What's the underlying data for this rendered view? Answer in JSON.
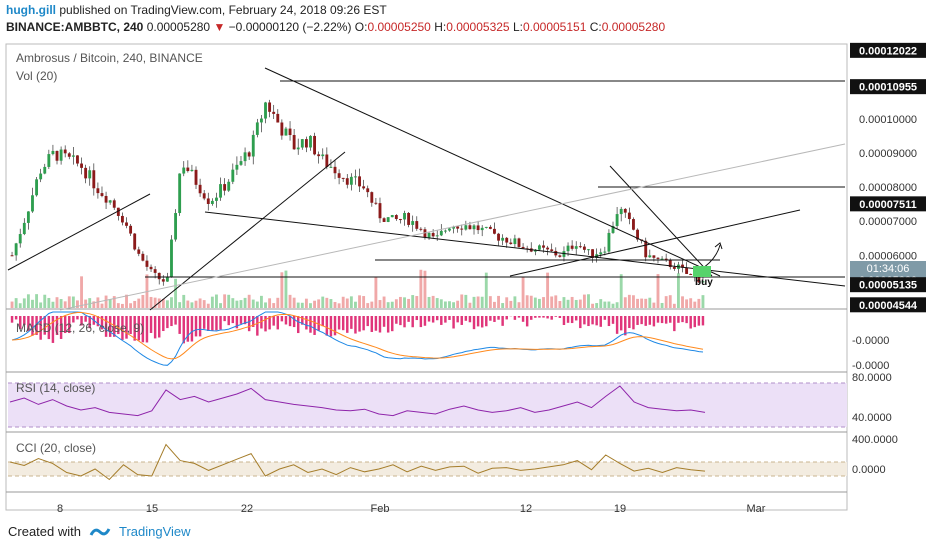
{
  "header": {
    "author": "hugh.gill",
    "published": "published on TradingView.com, February 24, 2018 09:26 EST",
    "symbol": "BINANCE:AMBBTC, 240",
    "last": "0.00005280",
    "change_arrow": "▼",
    "change": "−0.00000120 (−2.22%)",
    "o_label": "O:",
    "o": "0.00005250",
    "h_label": "H:",
    "h": "0.00005325",
    "l_label": "L:",
    "l": "0.00005151",
    "c_label": "C:",
    "c": "0.00005280"
  },
  "panes": {
    "main_title": "Ambrosus / Bitcoin, 240, BINANCE",
    "vol_title": "Vol (20)",
    "macd_title": "MACD (12, 26, close, 9)",
    "rsi_title": "RSI (14, close)",
    "cci_title": "CCI (20, close)",
    "annotation": "buy"
  },
  "colors": {
    "up": "#2e9e4f",
    "down": "#8b1a1a",
    "macd_hist": "#e0357a",
    "macd_line": "#1e88e5",
    "signal_line": "#ff8a1e",
    "rsi_line": "#8e24aa",
    "rsi_band": "#ece0f7",
    "cci_line": "#a57d2a",
    "cci_band": "#f3ece0",
    "brand": "#1e88c8"
  },
  "chart_data": {
    "type": "candlestick",
    "x_ticks": [
      "8",
      "15",
      "22",
      "Feb",
      "12",
      "19",
      "Mar"
    ],
    "y_ticks": [
      "0.00012022",
      "0.00010955",
      "0.00010000",
      "0.00009000",
      "0.00008000",
      "0.00007511",
      "0.00007000",
      "0.00006000",
      "0.00005280",
      "0.00005135",
      "0.00004544"
    ],
    "price_labels": [
      {
        "value": 0.00012022,
        "label": "0.00012022",
        "style": "boxed"
      },
      {
        "value": 0.00010955,
        "label": "0.00010955",
        "style": "boxed"
      },
      {
        "value": 0.0001,
        "label": "0.00010000",
        "style": "plain"
      },
      {
        "value": 9e-05,
        "label": "0.00009000",
        "style": "plain"
      },
      {
        "value": 8e-05,
        "label": "0.00008000",
        "style": "plain"
      },
      {
        "value": 7.511e-05,
        "label": "0.00007511",
        "style": "boxed"
      },
      {
        "value": 7e-05,
        "label": "0.00007000",
        "style": "plain"
      },
      {
        "value": 6e-05,
        "label": "0.00006000",
        "style": "plain"
      },
      {
        "value": 5.28e-05,
        "label": "0.00005280",
        "style": "current"
      },
      {
        "value": 5.135e-05,
        "label": "0.00005135",
        "style": "boxed"
      },
      {
        "value": 4.544e-05,
        "label": "0.00004544",
        "style": "boxed"
      }
    ],
    "countdown": "01:34:06",
    "ylim": [
      4.45e-05,
      0.0001215
    ],
    "horizontal_levels": [
      0.00010955,
      7.511e-05,
      5.135e-05
    ],
    "close_series": [
      6e-05,
      7.2e-05,
      8.5e-05,
      9e-05,
      8.8e-05,
      8.6e-05,
      8e-05,
      7.6e-05,
      7e-05,
      6e-05,
      5.4e-05,
      5.2e-05,
      8.8e-05,
      8.2e-05,
      7.6e-05,
      8e-05,
      8.6e-05,
      9.2e-05,
      0.000105,
      9.8e-05,
      9.2e-05,
      9.4e-05,
      8.8e-05,
      8.5e-05,
      8.2e-05,
      8e-05,
      7.2e-05,
      7e-05,
      7.1e-05,
      6.8e-05,
      6.4e-05,
      6.9e-05,
      6.9e-05,
      6.8e-05,
      6.6e-05,
      6.5e-05,
      6.3e-05,
      6.2e-05,
      6.1e-05,
      6e-05,
      6.4e-05,
      6e-05,
      6.2e-05,
      7.4e-05,
      6.8e-05,
      6e-05,
      5.8e-05,
      5.7e-05,
      5.4e-05,
      5.28e-05
    ],
    "macd_labels": [
      "-0.0000",
      "-0.0000"
    ],
    "rsi_ticks": [
      "80.0000",
      "40.0000"
    ],
    "rsi_ylim": [
      20,
      90
    ],
    "rsi_series": [
      55,
      60,
      52,
      58,
      50,
      45,
      48,
      42,
      40,
      38,
      44,
      70,
      58,
      62,
      55,
      60,
      65,
      72,
      58,
      55,
      52,
      50,
      48,
      45,
      44,
      46,
      40,
      38,
      44,
      42,
      40,
      46,
      50,
      45,
      42,
      44,
      48,
      42,
      45,
      50,
      55,
      48,
      62,
      75,
      55,
      48,
      46,
      44,
      45,
      42
    ],
    "cci_ticks": [
      "400.0000",
      "0.0000"
    ],
    "cci_ylim": [
      -300,
      500
    ],
    "cci_series": [
      100,
      50,
      150,
      80,
      -50,
      -100,
      0,
      -150,
      60,
      -80,
      -100,
      350,
      120,
      80,
      -20,
      60,
      140,
      220,
      -100,
      0,
      60,
      -50,
      0,
      -80,
      20,
      -40,
      0,
      60,
      -40,
      40,
      -20,
      30,
      40,
      -60,
      10,
      20,
      -20,
      0,
      30,
      60,
      120,
      -10,
      200,
      80,
      -30,
      10,
      -50,
      20,
      -10,
      -30
    ]
  },
  "footer": {
    "created_with": "Created with",
    "brand": "TradingView"
  }
}
